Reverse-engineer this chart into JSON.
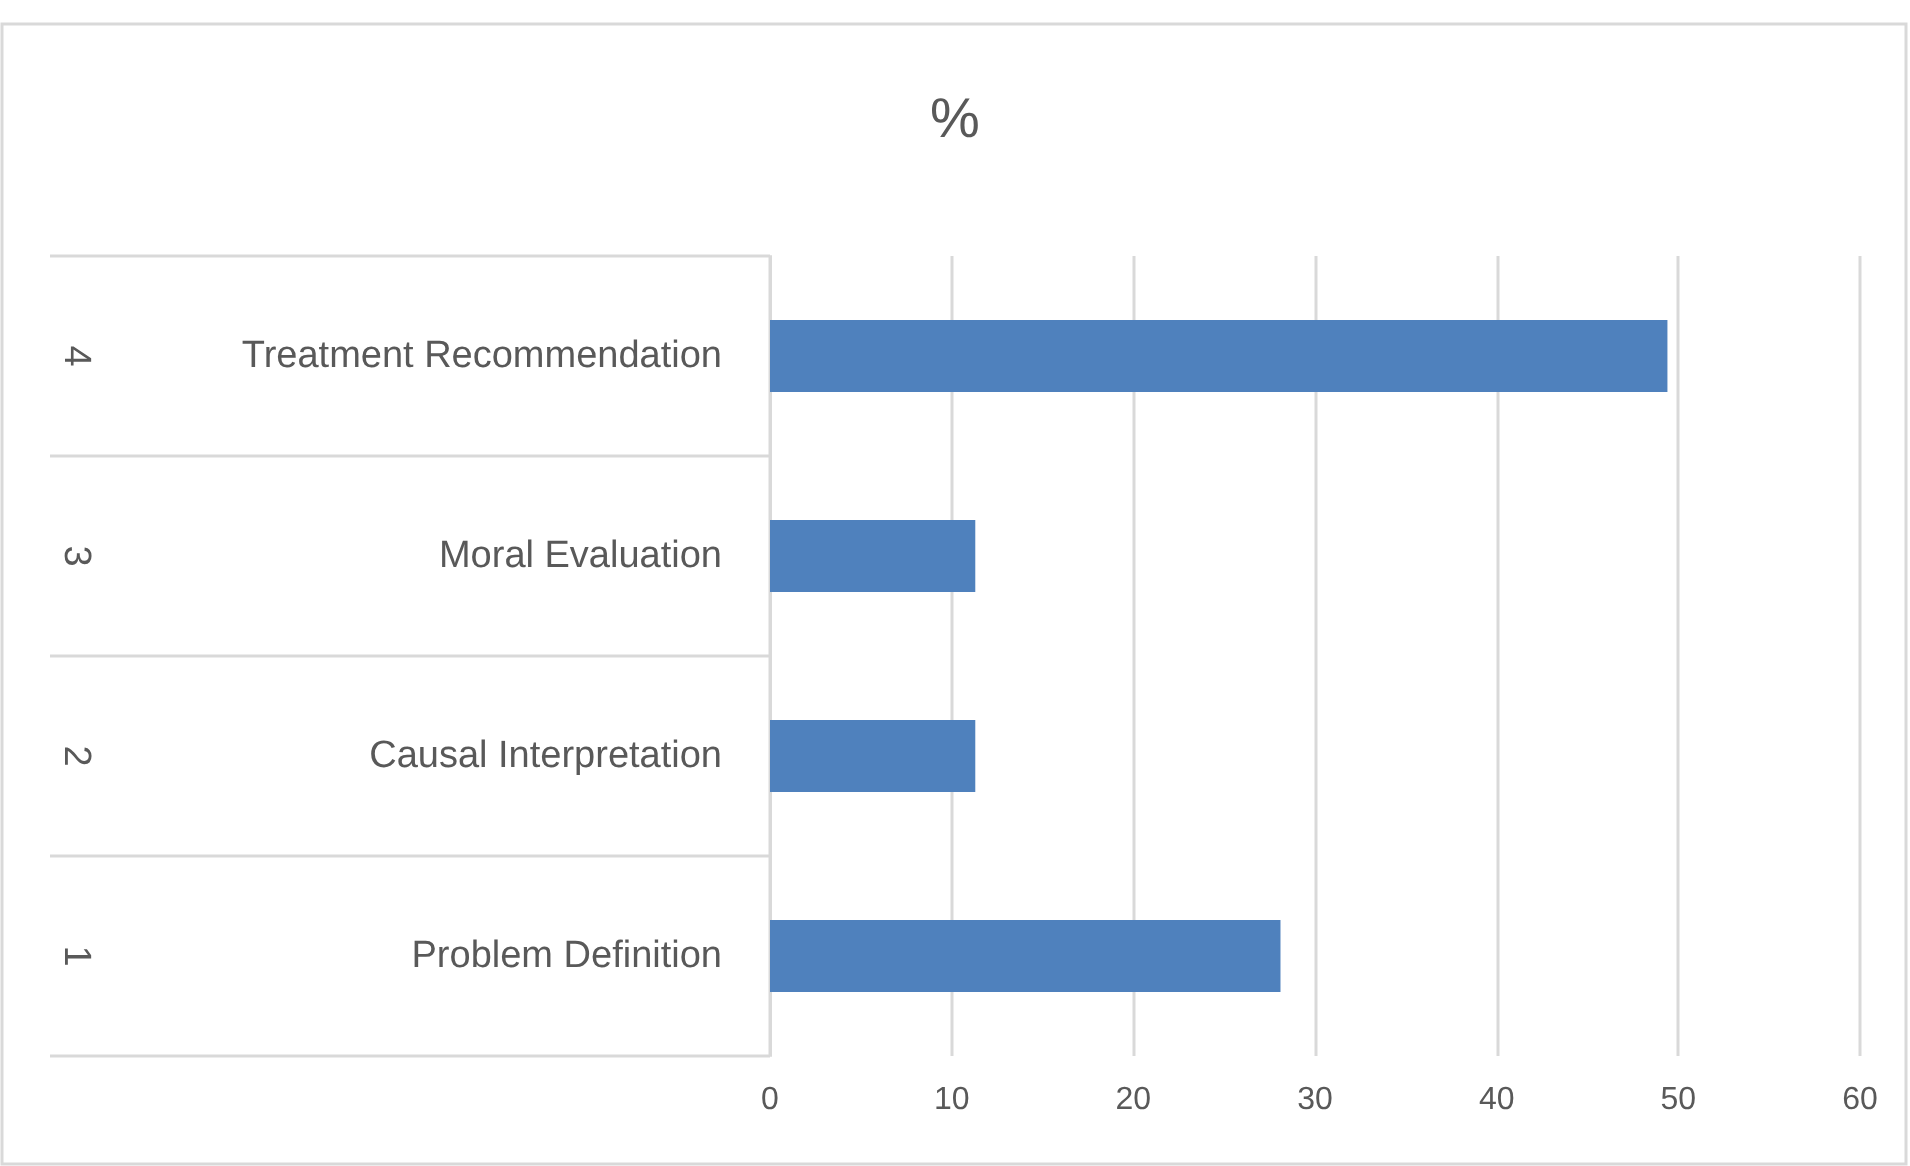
{
  "chart_data": {
    "type": "bar",
    "orientation": "horizontal",
    "title": "%",
    "categories": [
      "Treatment Recommendation",
      "Moral Evaluation",
      "Causal Interpretation",
      "Problem Definition"
    ],
    "values": [
      49.4,
      11.3,
      11.3,
      28.1
    ],
    "color": "#4f81bd",
    "xlim": [
      0,
      60
    ],
    "xticks": [
      0,
      10,
      20,
      30,
      40,
      50,
      60
    ],
    "grid": "x",
    "annotations": [
      "4",
      "3",
      "2",
      "1"
    ]
  }
}
